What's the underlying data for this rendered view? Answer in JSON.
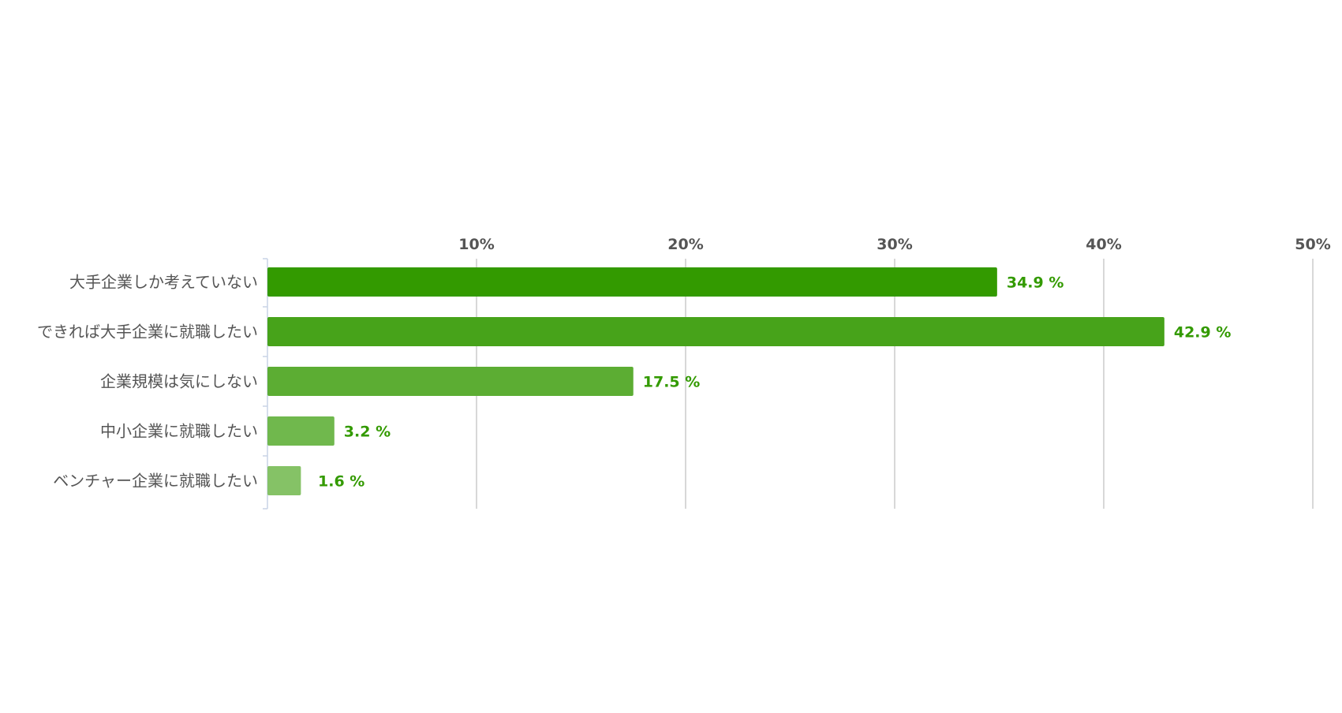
{
  "chart_data": {
    "type": "bar",
    "orientation": "horizontal",
    "categories": [
      "大手企業しか考えていない",
      "できれば大手企業に就職したい",
      "企業規模は気にしない",
      "中小企業に就職したい",
      "ベンチャー企業に就職したい"
    ],
    "values": [
      34.9,
      42.9,
      17.5,
      3.2,
      1.6
    ],
    "value_labels": [
      "34.9 %",
      "42.9 %",
      "17.5 %",
      "3.2 %",
      "1.6 %"
    ],
    "bar_colors": [
      "#339a00",
      "#47a31a",
      "#5cad33",
      "#70b84d",
      "#85c266"
    ],
    "value_label_color": "#339a00",
    "xlim": [
      0,
      50
    ],
    "x_ticks": [
      10,
      20,
      30,
      40,
      50
    ],
    "x_tick_labels": [
      "10%",
      "20%",
      "30%",
      "40%",
      "50%"
    ],
    "x_axis_position": "top",
    "grid": true,
    "legend": "none"
  }
}
